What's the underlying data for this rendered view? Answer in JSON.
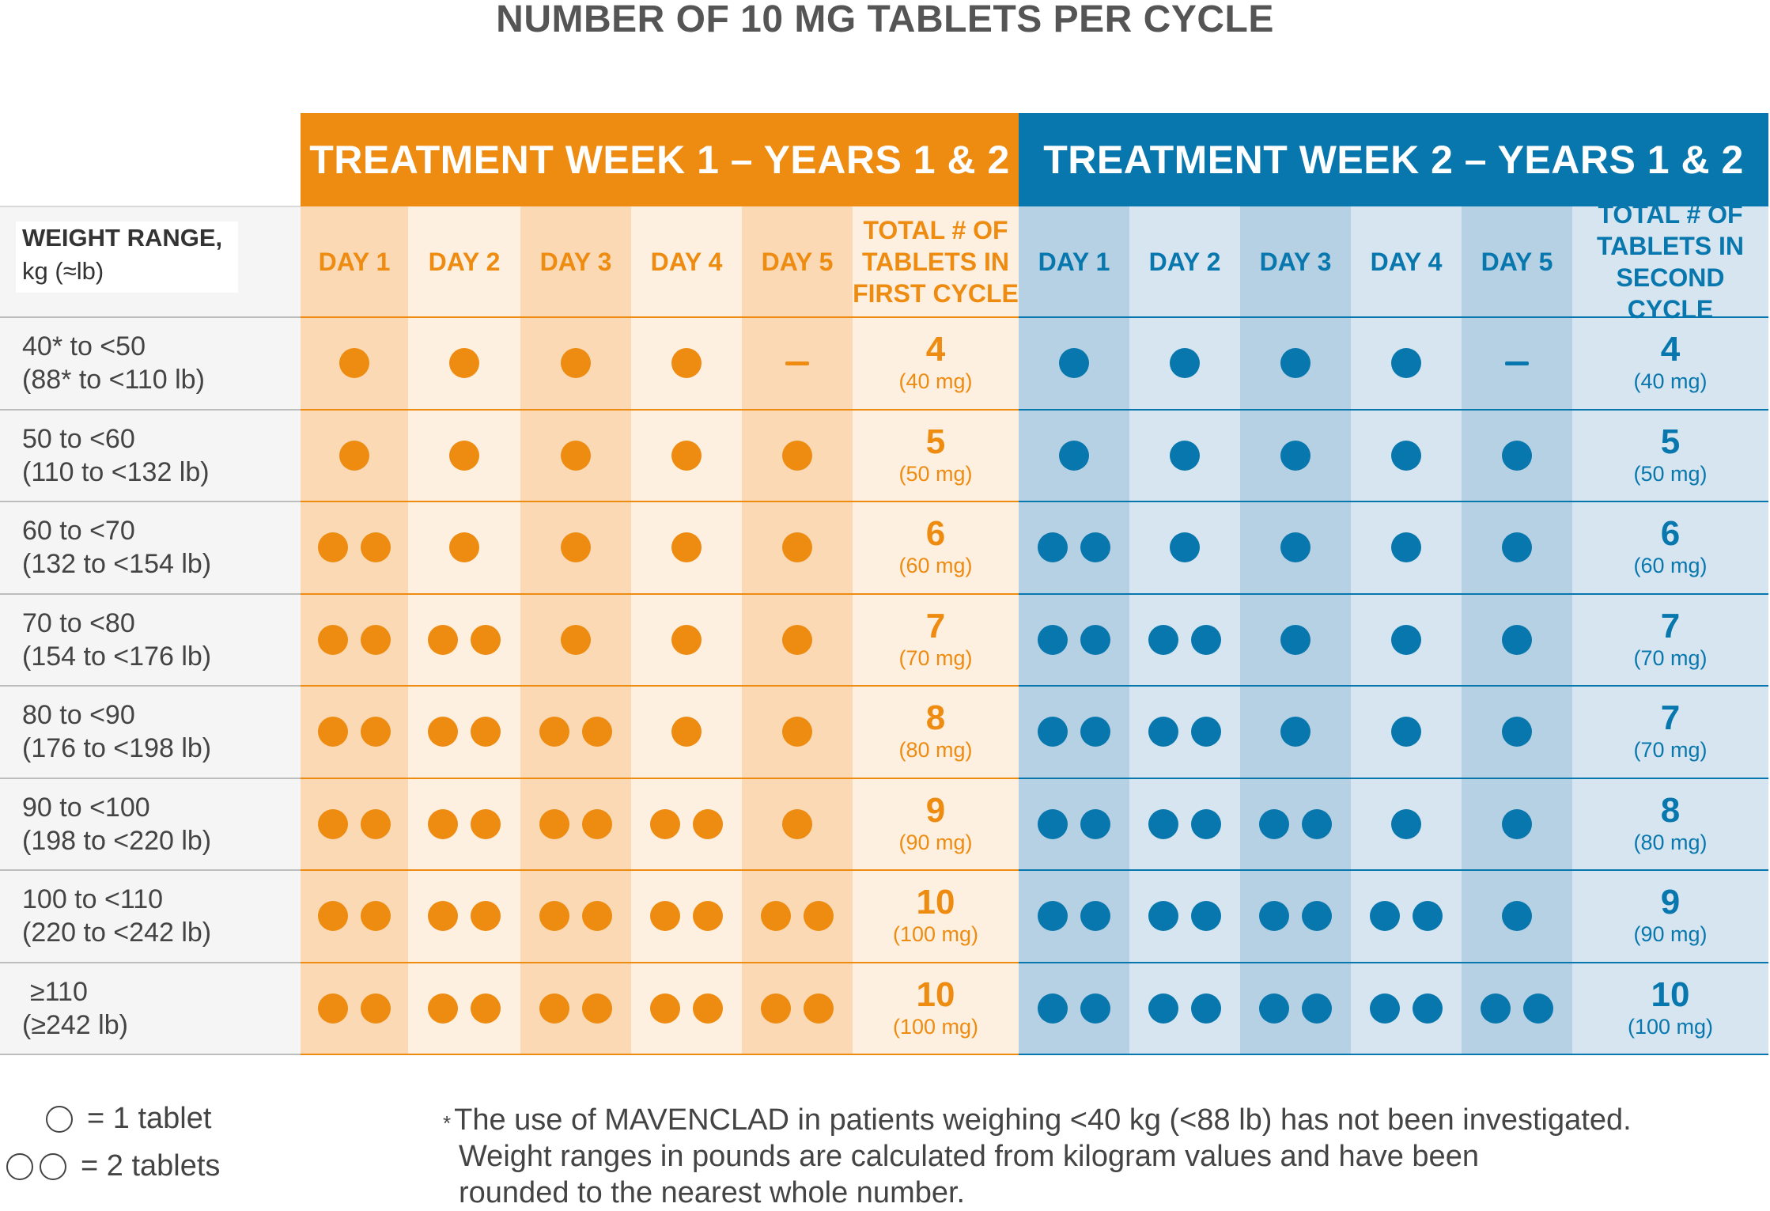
{
  "title": "NUMBER OF 10 MG TABLETS PER CYCLE",
  "colors": {
    "orange": "#EE8B11",
    "blue": "#0877AD",
    "orange_col_dark": "#FBD9B4",
    "orange_col_light": "#FEF0E1",
    "blue_col_dark": "#B6D1E3",
    "blue_col_light": "#D6E5F0",
    "row_label_bg": "#F5F5F5"
  },
  "chart_data": {
    "type": "table",
    "title": "NUMBER OF 10 MG TABLETS PER CYCLE",
    "groups": [
      {
        "label": "TREATMENT WEEK 1 – YEARS 1 & 2",
        "color": "orange"
      },
      {
        "label": "TREATMENT WEEK 2 – YEARS 1 & 2",
        "color": "blue"
      }
    ],
    "row_header_lines": [
      "WEIGHT RANGE,",
      "kg (≈lb)"
    ],
    "day_labels": [
      "DAY 1",
      "DAY 2",
      "DAY 3",
      "DAY 4",
      "DAY 5"
    ],
    "total_header_first": [
      "TOTAL # OF",
      "TABLETS IN",
      "FIRST CYCLE"
    ],
    "total_header_second": [
      "TOTAL # OF",
      "TABLETS IN",
      "SECOND CYCLE"
    ],
    "rows": [
      {
        "kg": "40* to <50",
        "lb": "(88* to <110 lb)",
        "week1": [
          1,
          1,
          1,
          1,
          0
        ],
        "total1": "4",
        "mg1": "(40 mg)",
        "week2": [
          1,
          1,
          1,
          1,
          0
        ],
        "total2": "4",
        "mg2": "(40 mg)"
      },
      {
        "kg": "50 to <60",
        "lb": "(110 to <132 lb)",
        "week1": [
          1,
          1,
          1,
          1,
          1
        ],
        "total1": "5",
        "mg1": "(50 mg)",
        "week2": [
          1,
          1,
          1,
          1,
          1
        ],
        "total2": "5",
        "mg2": "(50 mg)"
      },
      {
        "kg": "60 to <70",
        "lb": "(132 to <154 lb)",
        "week1": [
          2,
          1,
          1,
          1,
          1
        ],
        "total1": "6",
        "mg1": "(60 mg)",
        "week2": [
          2,
          1,
          1,
          1,
          1
        ],
        "total2": "6",
        "mg2": "(60 mg)"
      },
      {
        "kg": "70 to <80",
        "lb": "(154 to <176 lb)",
        "week1": [
          2,
          2,
          1,
          1,
          1
        ],
        "total1": "7",
        "mg1": "(70 mg)",
        "week2": [
          2,
          2,
          1,
          1,
          1
        ],
        "total2": "7",
        "mg2": "(70 mg)"
      },
      {
        "kg": "80 to <90",
        "lb": "(176 to <198 lb)",
        "week1": [
          2,
          2,
          2,
          1,
          1
        ],
        "total1": "8",
        "mg1": "(80 mg)",
        "week2": [
          2,
          2,
          1,
          1,
          1
        ],
        "total2": "7",
        "mg2": "(70 mg)"
      },
      {
        "kg": "90 to <100",
        "lb": "(198 to <220 lb)",
        "week1": [
          2,
          2,
          2,
          2,
          1
        ],
        "total1": "9",
        "mg1": "(90 mg)",
        "week2": [
          2,
          2,
          2,
          1,
          1
        ],
        "total2": "8",
        "mg2": "(80 mg)"
      },
      {
        "kg": "100 to <110",
        "lb": "(220 to <242 lb)",
        "week1": [
          2,
          2,
          2,
          2,
          2
        ],
        "total1": "10",
        "mg1": "(100 mg)",
        "week2": [
          2,
          2,
          2,
          2,
          1
        ],
        "total2": "9",
        "mg2": "(90 mg)"
      },
      {
        "kg": "≥110",
        "lb": "(≥242 lb)",
        "week1": [
          2,
          2,
          2,
          2,
          2
        ],
        "total1": "10",
        "mg1": "(100 mg)",
        "week2": [
          2,
          2,
          2,
          2,
          2
        ],
        "total2": "10",
        "mg2": "(100 mg)"
      }
    ]
  },
  "legend": {
    "one": "= 1 tablet",
    "two": "= 2 tablets"
  },
  "footnote": {
    "star": "*",
    "line1": "The use of MAVENCLAD in patients weighing <40 kg (<88 lb) has not been investigated.",
    "line2": "Weight ranges in pounds are calculated from kilogram values and have been",
    "line3": "rounded to the nearest whole number."
  }
}
